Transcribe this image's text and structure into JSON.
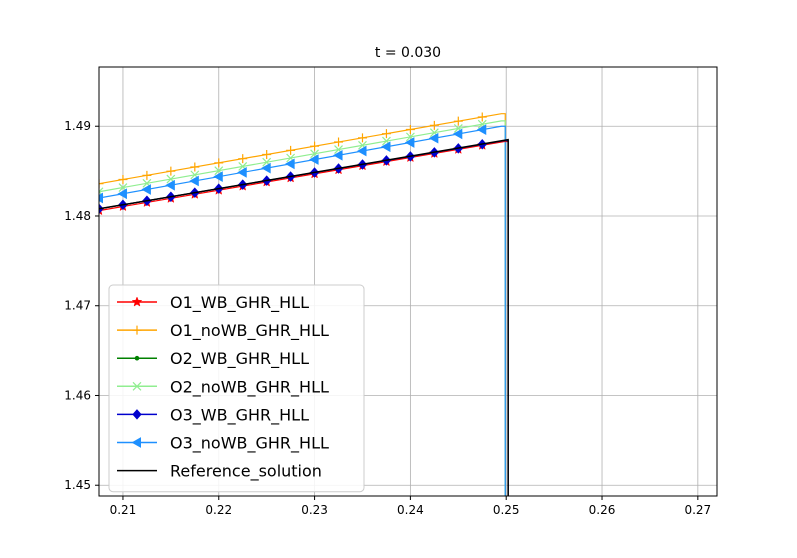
{
  "chart_data": {
    "type": "line",
    "title": "t = 0.030",
    "xlabel": "",
    "ylabel": "",
    "xlim": [
      0.2075,
      0.272
    ],
    "ylim": [
      1.4488,
      1.4966
    ],
    "xticks": [
      0.21,
      0.22,
      0.23,
      0.24,
      0.25,
      0.26,
      0.27
    ],
    "xtick_labels": [
      "0.21",
      "0.22",
      "0.23",
      "0.24",
      "0.25",
      "0.26",
      "0.27"
    ],
    "yticks": [
      1.45,
      1.46,
      1.47,
      1.48,
      1.49
    ],
    "ytick_labels": [
      "1.45",
      "1.46",
      "1.47",
      "1.48",
      "1.49"
    ],
    "grid": true,
    "legend_position": "lower-left",
    "series": [
      {
        "name": "O1_WB_GHR_HLL",
        "color": "#ff0000",
        "marker": "star",
        "x0": 0.2075,
        "y0": 1.4806,
        "x1": 0.2498,
        "y1": 1.4883,
        "marker_start": 0.2075,
        "marker_step": 0.0025,
        "marker_end": 0.2485,
        "x_drop": 0.2502,
        "y_drop": 1.4488
      },
      {
        "name": "O1_noWB_GHR_HLL",
        "color": "#ffa500",
        "marker": "plus",
        "x0": 0.2075,
        "y0": 1.4836,
        "x1": 0.2495,
        "y1": 1.4914,
        "marker_start": 0.2075,
        "marker_step": 0.0025,
        "marker_end": 0.2485,
        "x_drop": 0.2499,
        "y_drop": 1.4488
      },
      {
        "name": "O2_WB_GHR_HLL",
        "color": "#008000",
        "marker": "dot",
        "x0": 0.2075,
        "y0": 1.4808,
        "x1": 0.2498,
        "y1": 1.4884,
        "marker_start": 0.2075,
        "marker_step": 0.0025,
        "marker_end": 0.2485,
        "x_drop": 0.2502,
        "y_drop": 1.4488
      },
      {
        "name": "O2_noWB_GHR_HLL",
        "color": "#90ee90",
        "marker": "x",
        "x0": 0.2075,
        "y0": 1.4827,
        "x1": 0.2495,
        "y1": 1.4906,
        "marker_start": 0.2075,
        "marker_step": 0.0025,
        "marker_end": 0.2485,
        "x_drop": 0.2499,
        "y_drop": 1.4488
      },
      {
        "name": "O3_WB_GHR_HLL",
        "color": "#0000cd",
        "marker": "diamond",
        "x0": 0.2075,
        "y0": 1.4808,
        "x1": 0.2498,
        "y1": 1.4884,
        "marker_start": 0.2075,
        "marker_step": 0.0025,
        "marker_end": 0.2485,
        "x_drop": 0.2502,
        "y_drop": 1.4488
      },
      {
        "name": "O3_noWB_GHR_HLL",
        "color": "#1e90ff",
        "marker": "triangle-left",
        "x0": 0.2075,
        "y0": 1.482,
        "x1": 0.2495,
        "y1": 1.49,
        "marker_start": 0.2075,
        "marker_step": 0.0025,
        "marker_end": 0.2485,
        "x_drop": 0.2499,
        "y_drop": 1.4488
      },
      {
        "name": "Reference_solution",
        "color": "#000000",
        "marker": "none",
        "x0": 0.2075,
        "y0": 1.4808,
        "x1": 0.2502,
        "y1": 1.4885,
        "marker_start": 0,
        "marker_step": 0,
        "marker_end": 0,
        "x_drop": 0.2502,
        "y_drop": 1.4488
      }
    ]
  }
}
